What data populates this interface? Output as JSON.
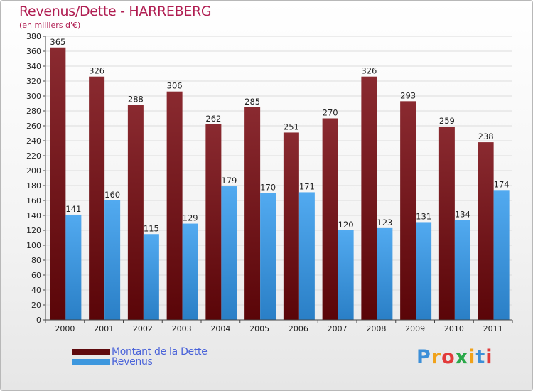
{
  "header": {
    "title": "Revenus/Dette - HARREBERG",
    "subtitle": "(en milliers d'€)"
  },
  "chart_data": {
    "type": "bar",
    "title": "Revenus/Dette - HARREBERG",
    "ylabel": "(en milliers d'€)",
    "xlabel": "",
    "ylim": [
      0,
      380
    ],
    "ytick_step": 20,
    "grid": true,
    "categories": [
      "2000",
      "2001",
      "2002",
      "2003",
      "2004",
      "2005",
      "2006",
      "2007",
      "2008",
      "2009",
      "2010",
      "2011"
    ],
    "series": [
      {
        "name": "Montant de la Dette",
        "color": "#7a1d22",
        "values": [
          365,
          326,
          288,
          306,
          262,
          285,
          251,
          270,
          326,
          293,
          259,
          238
        ]
      },
      {
        "name": "Revenus",
        "color": "#3d97de",
        "values": [
          141,
          160,
          115,
          129,
          179,
          170,
          171,
          120,
          123,
          131,
          134,
          174
        ]
      }
    ],
    "legend_position": "bottom-left"
  },
  "legend": {
    "items": [
      {
        "label": "Montant de la Dette",
        "color": "#5e0a0e"
      },
      {
        "label": "Revenus",
        "color": "#3d97de"
      }
    ]
  },
  "logo": {
    "letters": [
      "P",
      "r",
      "o",
      "x",
      "i",
      "t",
      "i"
    ],
    "colors": [
      "#3c8fd8",
      "#f0a21a",
      "#e23a3a",
      "#2aa84a",
      "#f0a21a",
      "#3c8fd8",
      "#e23a3a"
    ]
  }
}
